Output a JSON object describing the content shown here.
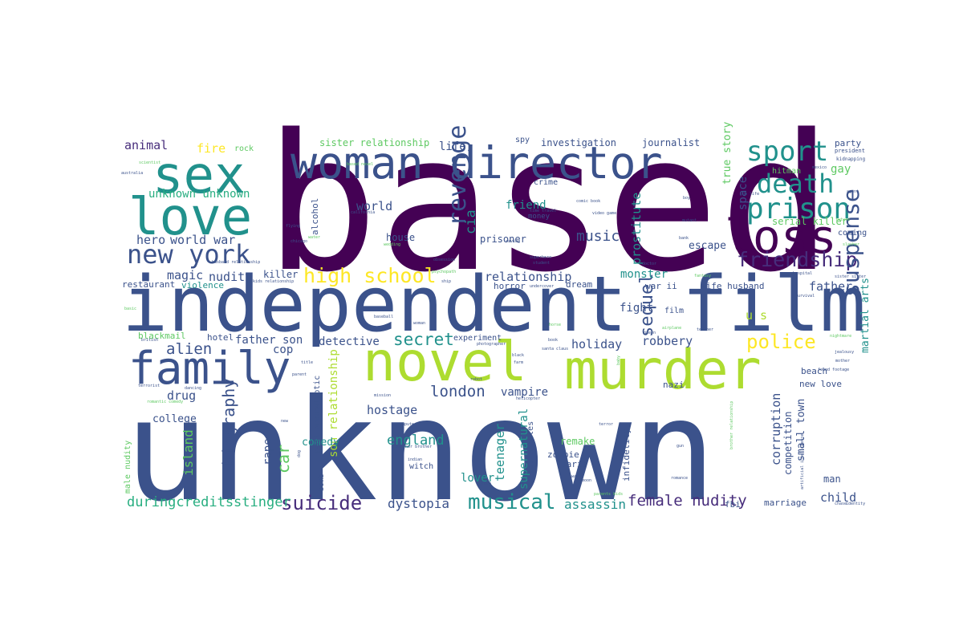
{
  "palette": {
    "purple": "#440154",
    "indigo": "#472d7b",
    "blue": "#3b528b",
    "steel": "#2c728e",
    "teal": "#21918c",
    "green": "#28ae80",
    "lime": "#5ec962",
    "yellowgreen": "#addc30",
    "yellow": "#fde725"
  },
  "words": [
    {
      "id": "based",
      "text": "based",
      "color": "#440154"
    },
    {
      "id": "unknown",
      "text": "unknown",
      "color": "#3b528b"
    },
    {
      "id": "independent",
      "text": "independent",
      "color": "#3b528b"
    },
    {
      "id": "film",
      "text": "film",
      "color": "#3b528b"
    },
    {
      "id": "novel",
      "text": "novel",
      "color": "#addc30"
    },
    {
      "id": "murder",
      "text": "murder",
      "color": "#addc30"
    },
    {
      "id": "family",
      "text": "family",
      "color": "#3b528b"
    },
    {
      "id": "sex",
      "text": "sex",
      "color": "#21918c"
    },
    {
      "id": "love",
      "text": "love",
      "color": "#21918c"
    },
    {
      "id": "woman-director",
      "text": "woman director",
      "color": "#3b528b"
    },
    {
      "id": "loss",
      "text": "loss",
      "color": "#440154"
    },
    {
      "id": "new-york",
      "text": "new york",
      "color": "#3b528b"
    },
    {
      "id": "sport",
      "text": "sport",
      "color": "#21918c"
    },
    {
      "id": "death",
      "text": "death",
      "color": "#21918c"
    },
    {
      "id": "prison",
      "text": "prison",
      "color": "#21918c"
    },
    {
      "id": "friendship",
      "text": "friendship",
      "color": "#472d7b"
    },
    {
      "id": "suspense",
      "text": "suspense",
      "color": "#3b528b"
    },
    {
      "id": "revenge",
      "text": "revenge",
      "color": "#3b528b"
    },
    {
      "id": "high-school",
      "text": "high school",
      "color": "#fde725"
    },
    {
      "id": "musical",
      "text": "musical",
      "color": "#21918c"
    },
    {
      "id": "suicide",
      "text": "suicide",
      "color": "#472d7b"
    },
    {
      "id": "biography",
      "text": "biography",
      "color": "#3b528b"
    },
    {
      "id": "london",
      "text": "london",
      "color": "#3b528b"
    },
    {
      "id": "police",
      "text": "police",
      "color": "#fde725"
    },
    {
      "id": "secret",
      "text": "secret",
      "color": "#21918c"
    },
    {
      "id": "sequel",
      "text": "sequel",
      "color": "#3b528b"
    },
    {
      "id": "alien",
      "text": "alien",
      "color": "#3b528b"
    },
    {
      "id": "music",
      "text": "music",
      "color": "#3b528b"
    },
    {
      "id": "female-nudity",
      "text": "female nudity",
      "color": "#472d7b"
    },
    {
      "id": "car",
      "text": "car",
      "color": "#5ec962"
    },
    {
      "id": "england",
      "text": "england",
      "color": "#21918c"
    },
    {
      "id": "durings",
      "text": "duringcreditsstinger",
      "color": "#28ae80"
    },
    {
      "id": "dystopia",
      "text": "dystopia",
      "color": "#3b528b"
    },
    {
      "id": "assassin",
      "text": "assassin",
      "color": "#21918c"
    },
    {
      "id": "unknown-unknown",
      "text": "unknown unknown",
      "color": "#28ae80"
    },
    {
      "id": "world-war",
      "text": "world war",
      "color": "#3b528b"
    },
    {
      "id": "fire",
      "text": "fire",
      "color": "#fde725"
    },
    {
      "id": "animal",
      "text": "animal",
      "color": "#472d7b"
    },
    {
      "id": "world",
      "text": "world",
      "color": "#3b528b"
    },
    {
      "id": "magic",
      "text": "magic",
      "color": "#3b528b"
    },
    {
      "id": "nudity",
      "text": "nudity",
      "color": "#3b528b"
    },
    {
      "id": "hero",
      "text": "hero",
      "color": "#3b528b"
    },
    {
      "id": "life",
      "text": "life",
      "color": "#3b528b"
    },
    {
      "id": "cia",
      "text": "cia",
      "color": "#21918c"
    },
    {
      "id": "friend",
      "text": "friend",
      "color": "#21918c"
    },
    {
      "id": "relationship",
      "text": "relationship",
      "color": "#3b528b"
    },
    {
      "id": "prostitute",
      "text": "prostitute",
      "color": "#21918c"
    },
    {
      "id": "monster",
      "text": "monster",
      "color": "#21918c"
    },
    {
      "id": "fight",
      "text": "fight",
      "color": "#3b528b"
    },
    {
      "id": "robbery",
      "text": "robbery",
      "color": "#3b528b"
    },
    {
      "id": "holiday",
      "text": "holiday",
      "color": "#3b528b"
    },
    {
      "id": "detective",
      "text": "detective",
      "color": "#3b528b"
    },
    {
      "id": "father-son",
      "text": "father son",
      "color": "#3b528b"
    },
    {
      "id": "cop",
      "text": "cop",
      "color": "#3b528b"
    },
    {
      "id": "drug",
      "text": "drug",
      "color": "#3b528b"
    },
    {
      "id": "hostage",
      "text": "hostage",
      "color": "#3b528b"
    },
    {
      "id": "vampire",
      "text": "vampire",
      "color": "#3b528b"
    },
    {
      "id": "teenager",
      "text": "teenager",
      "color": "#21918c"
    },
    {
      "id": "supernatural",
      "text": "supernatural",
      "color": "#21918c"
    },
    {
      "id": "lover",
      "text": "lover",
      "color": "#21918c"
    },
    {
      "id": "island",
      "text": "island",
      "color": "#5ec962"
    },
    {
      "id": "rape",
      "text": "rape",
      "color": "#3b528b"
    },
    {
      "id": "son-relationship",
      "text": "son relationship",
      "color": "#addc30"
    },
    {
      "id": "comedy",
      "text": "comedy",
      "color": "#21918c"
    },
    {
      "id": "college",
      "text": "college",
      "color": "#3b528b"
    },
    {
      "id": "corruption",
      "text": "corruption",
      "color": "#3b528b"
    },
    {
      "id": "small-town",
      "text": "small town",
      "color": "#3b528b"
    },
    {
      "id": "child",
      "text": "child",
      "color": "#3b528b"
    },
    {
      "id": "martial-arts",
      "text": "martial arts",
      "color": "#21918c"
    },
    {
      "id": "u-s",
      "text": "u s",
      "color": "#addc30"
    },
    {
      "id": "father",
      "text": "father",
      "color": "#3b528b"
    },
    {
      "id": "space",
      "text": "space",
      "color": "#3b528b"
    },
    {
      "id": "gay",
      "text": "gay",
      "color": "#5ec962"
    },
    {
      "id": "serial-killer",
      "text": "serial killer",
      "color": "#5ec962"
    },
    {
      "id": "true-story",
      "text": "true story",
      "color": "#5ec962"
    },
    {
      "id": "escape",
      "text": "escape",
      "color": "#3b528b"
    },
    {
      "id": "investigation",
      "text": "investigation",
      "color": "#3b528b"
    },
    {
      "id": "journalist",
      "text": "journalist",
      "color": "#3b528b"
    },
    {
      "id": "sister-relationship",
      "text": "sister relationship",
      "color": "#5ec962"
    },
    {
      "id": "prisoner",
      "text": "prisoner",
      "color": "#3b528b"
    },
    {
      "id": "house",
      "text": "house",
      "color": "#3b528b"
    },
    {
      "id": "alcohol",
      "text": "alcohol",
      "color": "#3b528b"
    },
    {
      "id": "killer",
      "text": "killer",
      "color": "#3b528b"
    },
    {
      "id": "restaurant",
      "text": "restaurant",
      "color": "#3b528b"
    },
    {
      "id": "violence",
      "text": "violence",
      "color": "#21918c"
    },
    {
      "id": "blackmail",
      "text": "blackmail",
      "color": "#5ec962"
    },
    {
      "id": "hotel",
      "text": "hotel",
      "color": "#3b528b"
    },
    {
      "id": "horror",
      "text": "horror",
      "color": "#3b528b"
    },
    {
      "id": "dream",
      "text": "dream",
      "color": "#3b528b"
    },
    {
      "id": "war-ii",
      "text": "war ii",
      "color": "#3b528b"
    },
    {
      "id": "wife-husband",
      "text": "wife husband",
      "color": "#3b528b"
    },
    {
      "id": "experiment",
      "text": "experiment",
      "color": "#3b528b"
    },
    {
      "id": "witch",
      "text": "witch",
      "color": "#3b528b"
    },
    {
      "id": "post-apocalyptic",
      "text": "post apocalyptic",
      "color": "#3b528b"
    },
    {
      "id": "remake",
      "text": "remake",
      "color": "#5ec962"
    },
    {
      "id": "zombie",
      "text": "zombie",
      "color": "#3b528b"
    },
    {
      "id": "paris",
      "text": "paris",
      "color": "#3b528b"
    },
    {
      "id": "los-angeles",
      "text": "los angeles",
      "color": "#3b528b"
    },
    {
      "id": "new-love",
      "text": "new love",
      "color": "#3b528b"
    },
    {
      "id": "beach",
      "text": "beach",
      "color": "#3b528b"
    },
    {
      "id": "nazi",
      "text": "nazi",
      "color": "#3b528b"
    },
    {
      "id": "fbi",
      "text": "fbi",
      "color": "#3b528b"
    },
    {
      "id": "marriage",
      "text": "marriage",
      "color": "#3b528b"
    },
    {
      "id": "man",
      "text": "man",
      "color": "#3b528b"
    },
    {
      "id": "competition",
      "text": "competition",
      "color": "#3b528b"
    },
    {
      "id": "infidelity",
      "text": "infidelity",
      "color": "#3b528b"
    },
    {
      "id": "party",
      "text": "party",
      "color": "#3b528b"
    },
    {
      "id": "hitman",
      "text": "hitman",
      "color": "#5ec962"
    },
    {
      "id": "coming",
      "text": "coming",
      "color": "#3b528b"
    },
    {
      "id": "rock",
      "text": "rock",
      "color": "#5ec962"
    },
    {
      "id": "crime",
      "text": "crime",
      "color": "#3b528b"
    },
    {
      "id": "money",
      "text": "money",
      "color": "#3b528b"
    },
    {
      "id": "spy",
      "text": "spy",
      "color": "#3b528b"
    },
    {
      "id": "male-nudity",
      "text": "male nudity",
      "color": "#5ec962"
    },
    {
      "id": "bomb",
      "text": "bomb",
      "color": "#3b528b"
    },
    {
      "id": "film-small",
      "text": "film",
      "color": "#3b528b"
    },
    {
      "id": "president",
      "text": "president",
      "color": "#3b528b"
    },
    {
      "id": "kidnapping",
      "text": "kidnapping",
      "color": "#3b528b"
    },
    {
      "id": "scientist",
      "text": "scientist",
      "color": "#5ec962"
    },
    {
      "id": "australia",
      "text": "australia",
      "color": "#3b528b"
    },
    {
      "id": "mexico",
      "text": "mexico",
      "color": "#3b528b"
    },
    {
      "id": "agent",
      "text": "agent",
      "color": "#3b528b"
    },
    {
      "id": "future",
      "text": "future",
      "color": "#5ec962"
    },
    {
      "id": "slasher",
      "text": "slasher",
      "color": "#5ec962"
    },
    {
      "id": "boy",
      "text": "boy",
      "color": "#3b528b"
    },
    {
      "id": "doctor",
      "text": "doctor",
      "color": "#3b528b"
    },
    {
      "id": "mutant",
      "text": "mutant",
      "color": "#3b528b"
    },
    {
      "id": "fantasy",
      "text": "fantasy",
      "color": "#5ec962"
    },
    {
      "id": "hospital",
      "text": "hospital",
      "color": "#3b528b"
    },
    {
      "id": "sister-sister",
      "text": "sister sister",
      "color": "#3b528b"
    },
    {
      "id": "survival",
      "text": "survival",
      "color": "#3b528b"
    },
    {
      "id": "airplane",
      "text": "airplane",
      "color": "#5ec962"
    },
    {
      "id": "teacher",
      "text": "teacher",
      "color": "#3b528b"
    },
    {
      "id": "nightmare",
      "text": "nightmare",
      "color": "#5ec962"
    },
    {
      "id": "jealousy",
      "text": "jealousy",
      "color": "#3b528b"
    },
    {
      "id": "mother",
      "text": "mother",
      "color": "#3b528b"
    },
    {
      "id": "found-footage",
      "text": "found footage",
      "color": "#3b528b"
    },
    {
      "id": "brother-relationship",
      "text": "brother relationship",
      "color": "#5ec962"
    },
    {
      "id": "artificial-intelligence",
      "text": "artificial intelligence",
      "color": "#3b528b"
    },
    {
      "id": "chase",
      "text": "chase",
      "color": "#3b528b"
    },
    {
      "id": "identity",
      "text": "identity",
      "color": "#3b528b"
    },
    {
      "id": "gun",
      "text": "gun",
      "color": "#3b528b"
    },
    {
      "id": "romance",
      "text": "romance",
      "color": "#3b528b"
    },
    {
      "id": "parents-kids",
      "text": "parents kids",
      "color": "#5ec962"
    },
    {
      "id": "terror",
      "text": "terror",
      "color": "#3b528b"
    },
    {
      "id": "video-game",
      "text": "video game",
      "color": "#3b528b"
    },
    {
      "id": "comic-book",
      "text": "comic book",
      "color": "#3b528b"
    },
    {
      "id": "time-travel",
      "text": "time travel",
      "color": "#3b528b"
    },
    {
      "id": "superhero",
      "text": "superhero",
      "color": "#3b528b"
    },
    {
      "id": "student",
      "text": "student",
      "color": "#3b528b"
    },
    {
      "id": "undercover",
      "text": "undercover",
      "color": "#3b528b"
    },
    {
      "id": "psychopath",
      "text": "psychopath",
      "color": "#5ec962"
    },
    {
      "id": "obsession",
      "text": "obsession",
      "color": "#3b528b"
    },
    {
      "id": "ship",
      "text": "ship",
      "color": "#3b528b"
    },
    {
      "id": "saving",
      "text": "saving",
      "color": "#3b528b"
    },
    {
      "id": "california",
      "text": "california",
      "color": "#3b528b"
    },
    {
      "id": "flying",
      "text": "flying",
      "color": "#3b528b"
    },
    {
      "id": "chicago",
      "text": "chicago",
      "color": "#3b528b"
    },
    {
      "id": "water",
      "text": "water",
      "color": "#5ec962"
    },
    {
      "id": "husband-relationship",
      "text": "husband relationship",
      "color": "#3b528b"
    },
    {
      "id": "kids-relationship",
      "text": "kids relationship",
      "color": "#3b528b"
    },
    {
      "id": "baseball",
      "text": "baseball",
      "color": "#3b528b"
    },
    {
      "id": "woman",
      "text": "woman",
      "color": "#3b528b"
    },
    {
      "id": "photographer",
      "text": "photographer",
      "color": "#3b528b"
    },
    {
      "id": "black",
      "text": "black",
      "color": "#3b528b"
    },
    {
      "id": "farm",
      "text": "farm",
      "color": "#3b528b"
    },
    {
      "id": "santa-claus",
      "text": "santa claus",
      "color": "#3b528b"
    },
    {
      "id": "horse",
      "text": "horse",
      "color": "#5ec962"
    },
    {
      "id": "queen",
      "text": "queen",
      "color": "#3b528b"
    },
    {
      "id": "baby",
      "text": "baby",
      "color": "#5ec962"
    },
    {
      "id": "robot",
      "text": "robot",
      "color": "#3b528b"
    },
    {
      "id": "helicopter",
      "text": "helicopter",
      "color": "#3b528b"
    },
    {
      "id": "mission",
      "text": "mission",
      "color": "#3b528b"
    },
    {
      "id": "title",
      "text": "title",
      "color": "#3b528b"
    },
    {
      "id": "parent",
      "text": "parent",
      "color": "#3b528b"
    },
    {
      "id": "terrorist",
      "text": "terrorist",
      "color": "#3b528b"
    },
    {
      "id": "dancing",
      "text": "dancing",
      "color": "#3b528b"
    },
    {
      "id": "romantic-comedy",
      "text": "romantic comedy",
      "color": "#5ec962"
    },
    {
      "id": "computer",
      "text": "computer",
      "color": "#3b528b"
    },
    {
      "id": "new",
      "text": "new",
      "color": "#3b528b"
    },
    {
      "id": "brother-brother",
      "text": "brother brother",
      "color": "#3b528b"
    },
    {
      "id": "indian",
      "text": "indian",
      "color": "#3b528b"
    },
    {
      "id": "group",
      "text": "group",
      "color": "#3b528b"
    },
    {
      "id": "war",
      "text": "war",
      "color": "#3b528b"
    },
    {
      "id": "moon",
      "text": "moon",
      "color": "#3b528b"
    },
    {
      "id": "book",
      "text": "book",
      "color": "#3b528b"
    },
    {
      "id": "wedding",
      "text": "wedding",
      "color": "#5ec962"
    },
    {
      "id": "based-novel",
      "text": "based novel",
      "color": "#5ec962"
    },
    {
      "id": "one-life",
      "text": "one life",
      "color": "#3b528b"
    },
    {
      "id": "bank",
      "text": "bank",
      "color": "#3b528b"
    },
    {
      "id": "basic",
      "text": "basic",
      "color": "#5ec962"
    },
    {
      "id": "british",
      "text": "british",
      "color": "#3b528b"
    },
    {
      "id": "dog",
      "text": "dog",
      "color": "#3b528b"
    }
  ]
}
